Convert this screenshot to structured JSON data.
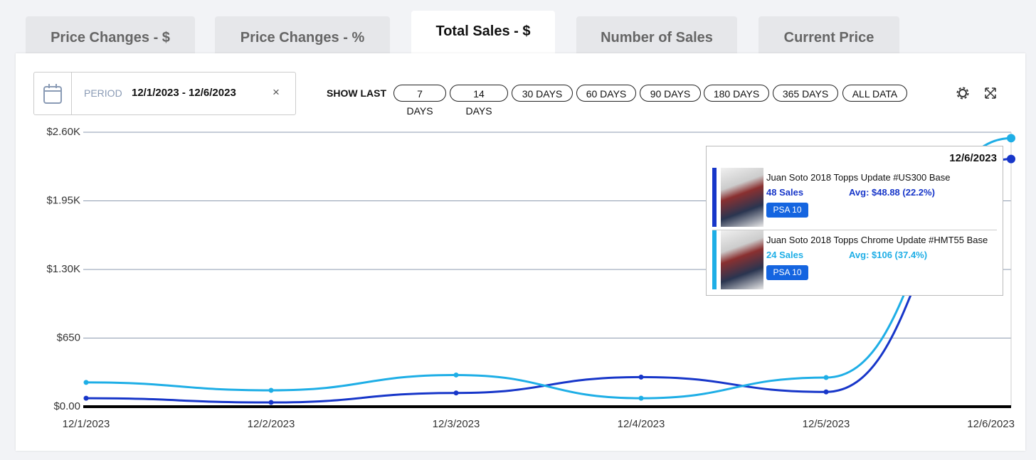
{
  "tabs": [
    "Price Changes - $",
    "Price Changes - %",
    "Total Sales - $",
    "Number of Sales",
    "Current Price"
  ],
  "period": {
    "label": "PERIOD",
    "value": "12/1/2023 - 12/6/2023"
  },
  "show_last": {
    "label": "SHOW LAST",
    "options": [
      "7 DAYS",
      "14 DAYS",
      "30 DAYS",
      "60 DAYS",
      "90 DAYS",
      "180 DAYS",
      "365 DAYS",
      "ALL DATA"
    ]
  },
  "chart_data": {
    "type": "line",
    "x": [
      "12/1/2023",
      "12/2/2023",
      "12/3/2023",
      "12/4/2023",
      "12/5/2023",
      "12/6/2023"
    ],
    "series": [
      {
        "name": "Juan Soto 2018 Topps Update #US300 Base",
        "color": "#1736c9",
        "values": [
          80,
          40,
          130,
          280,
          140,
          2346.24
        ]
      },
      {
        "name": "Juan Soto 2018 Topps Chrome Update #HMT55 Base",
        "color": "#1eaee6",
        "values": [
          230,
          155,
          300,
          80,
          276,
          2544
        ]
      }
    ],
    "ylim": [
      0,
      2600
    ],
    "yticks": [
      {
        "value": 0,
        "label": "$0.00"
      },
      {
        "value": 650,
        "label": "$650"
      },
      {
        "value": 1300,
        "label": "$1.30K"
      },
      {
        "value": 1950,
        "label": "$1.95K"
      },
      {
        "value": 2600,
        "label": "$2.60K"
      }
    ],
    "grid": true
  },
  "tooltip": {
    "items": [
      {
        "sales": "48 Sales",
        "avg": "Avg: $48.88 (22.2%)",
        "grade": "PSA 10"
      },
      {
        "sales": "24 Sales",
        "avg": "Avg: $106 (37.4%)",
        "grade": "PSA 10"
      }
    ]
  }
}
